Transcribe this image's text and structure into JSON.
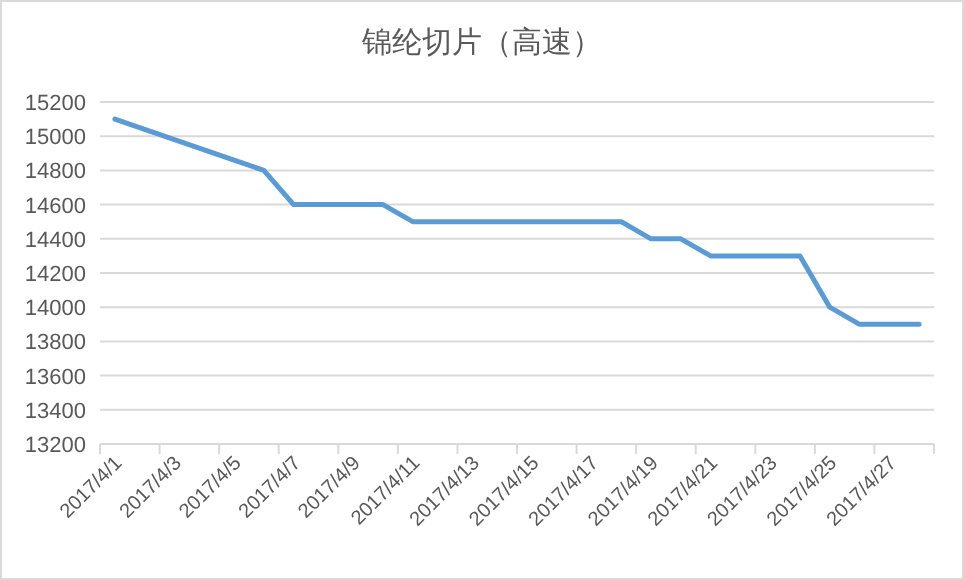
{
  "chart_data": {
    "type": "line",
    "title": "锦纶切片（高速）",
    "categories": [
      "2017/4/1",
      null,
      "2017/4/3",
      null,
      "2017/4/5",
      null,
      "2017/4/7",
      null,
      "2017/4/9",
      null,
      "2017/4/11",
      null,
      "2017/4/13",
      null,
      "2017/4/15",
      null,
      "2017/4/17",
      null,
      "2017/4/19",
      null,
      "2017/4/21",
      null,
      "2017/4/23",
      null,
      "2017/4/25",
      null,
      "2017/4/27",
      null
    ],
    "series": [
      {
        "color": "#5b9bd5",
        "values": [
          15100,
          15040,
          14980,
          14920,
          14860,
          14800,
          14600,
          14600,
          14600,
          14600,
          14500,
          14500,
          14500,
          14500,
          14500,
          14500,
          14500,
          14500,
          14400,
          14400,
          14300,
          14300,
          14300,
          14300,
          14000,
          13900,
          13900,
          13900
        ]
      }
    ],
    "ylim": [
      13200,
      15200
    ],
    "yticks": [
      13200,
      13400,
      13600,
      13800,
      14000,
      14200,
      14400,
      14600,
      14800,
      15000,
      15200
    ],
    "grid": "y",
    "marker": "none",
    "line_style": "solid"
  }
}
